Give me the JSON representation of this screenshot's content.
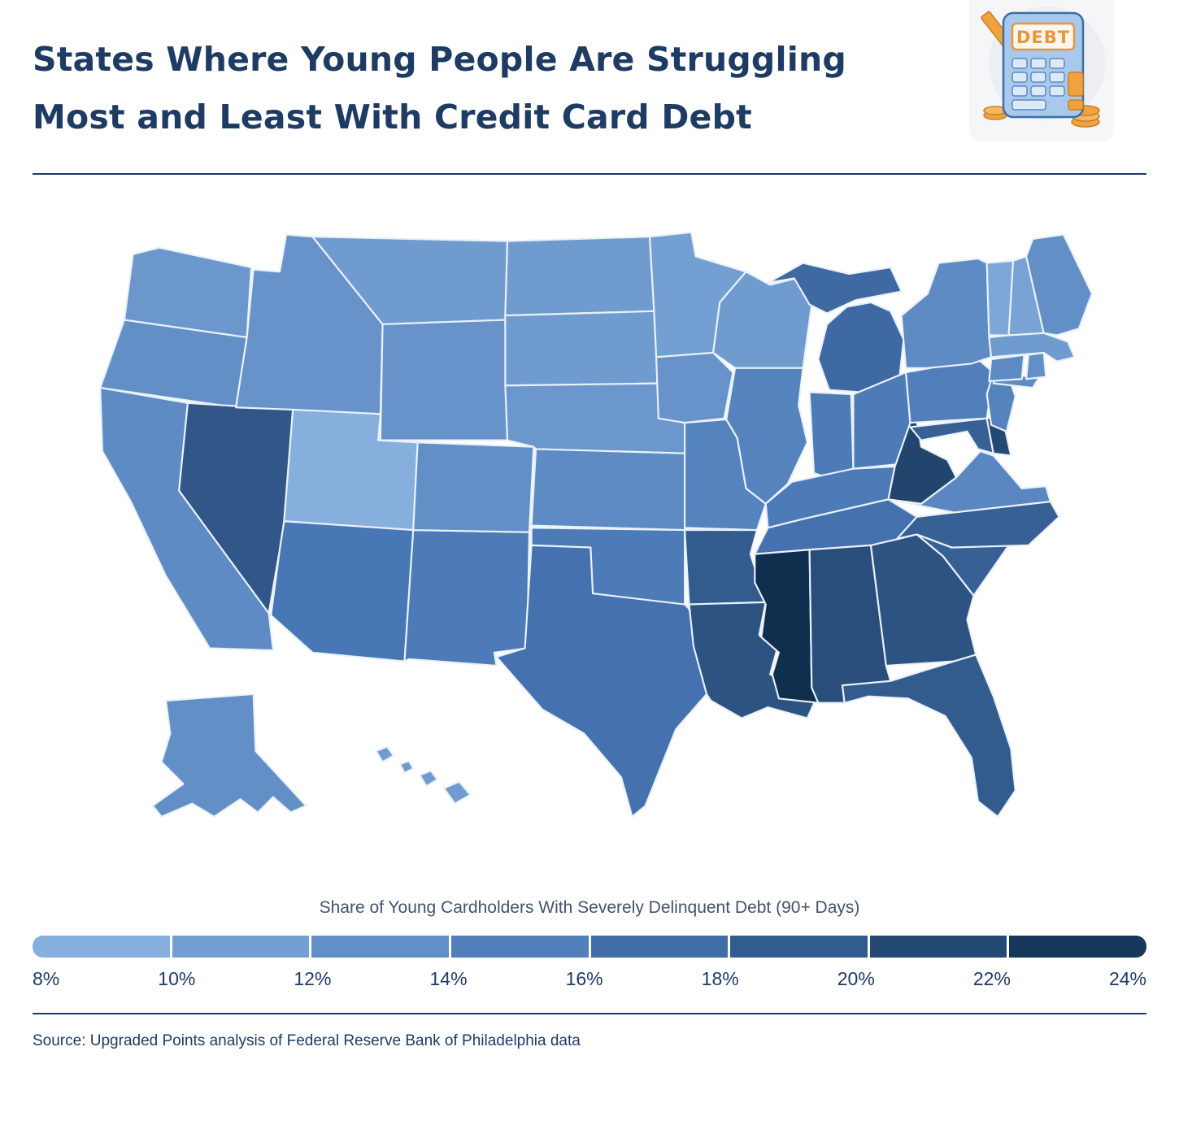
{
  "header": {
    "title": "States Where Young People Are Struggling Most and Least With Credit Card Debt",
    "title_lines": [
      "States Where Young People Are Struggling",
      "Most and Least With Credit Card Debt"
    ],
    "illustration": {
      "label": "DEBT"
    }
  },
  "legend": {
    "title": "Share of Young Cardholders With Severely Delinquent Debt (90+ Days)",
    "ticks": [
      "8%",
      "10%",
      "12%",
      "14%",
      "16%",
      "18%",
      "20%",
      "22%",
      "24%"
    ],
    "colors": [
      "#86afde",
      "#749fd2",
      "#638fc7",
      "#517fbb",
      "#416ea8",
      "#335c8e",
      "#254975",
      "#17375b"
    ],
    "scale": {
      "min": 8,
      "max": 24,
      "stops": [
        "#8fb7e4",
        "#4877b5",
        "#102e4e"
      ]
    }
  },
  "source": "Source: Upgraded Points analysis of Federal Reserve Bank of Philadelphia data",
  "chart_data": {
    "type": "choropleth_map",
    "title": "Share of Young Cardholders With Severely Delinquent Debt (90+ Days)",
    "unit": "%",
    "value_range": [
      8,
      24
    ],
    "states": [
      {
        "abbr": "WA",
        "name": "Washington",
        "value": 12
      },
      {
        "abbr": "OR",
        "name": "Oregon",
        "value": 13
      },
      {
        "abbr": "CA",
        "name": "California",
        "value": 13.5
      },
      {
        "abbr": "NV",
        "name": "Nevada",
        "value": 19.5
      },
      {
        "abbr": "ID",
        "name": "Idaho",
        "value": 12.5
      },
      {
        "abbr": "MT",
        "name": "Montana",
        "value": 11.5
      },
      {
        "abbr": "WY",
        "name": "Wyoming",
        "value": 12.5
      },
      {
        "abbr": "UT",
        "name": "Utah",
        "value": 9
      },
      {
        "abbr": "AZ",
        "name": "Arizona",
        "value": 16
      },
      {
        "abbr": "NM",
        "name": "New Mexico",
        "value": 15.5
      },
      {
        "abbr": "CO",
        "name": "Colorado",
        "value": 13
      },
      {
        "abbr": "ND",
        "name": "North Dakota",
        "value": 11.5
      },
      {
        "abbr": "SD",
        "name": "South Dakota",
        "value": 11.5
      },
      {
        "abbr": "NE",
        "name": "Nebraska",
        "value": 12
      },
      {
        "abbr": "KS",
        "name": "Kansas",
        "value": 13.5
      },
      {
        "abbr": "OK",
        "name": "Oklahoma",
        "value": 15.5
      },
      {
        "abbr": "TX",
        "name": "Texas",
        "value": 16.5
      },
      {
        "abbr": "MN",
        "name": "Minnesota",
        "value": 11
      },
      {
        "abbr": "IA",
        "name": "Iowa",
        "value": 12.5
      },
      {
        "abbr": "MO",
        "name": "Missouri",
        "value": 14.5
      },
      {
        "abbr": "AR",
        "name": "Arkansas",
        "value": 19
      },
      {
        "abbr": "LA",
        "name": "Louisiana",
        "value": 20
      },
      {
        "abbr": "WI",
        "name": "Wisconsin",
        "value": 11.5
      },
      {
        "abbr": "IL",
        "name": "Illinois",
        "value": 14.5
      },
      {
        "abbr": "MI",
        "name": "Michigan",
        "value": 17.5
      },
      {
        "abbr": "IN",
        "name": "Indiana",
        "value": 15.5
      },
      {
        "abbr": "OH",
        "name": "Ohio",
        "value": 15.5
      },
      {
        "abbr": "KY",
        "name": "Kentucky",
        "value": 15.5
      },
      {
        "abbr": "TN",
        "name": "Tennessee",
        "value": 16.5
      },
      {
        "abbr": "MS",
        "name": "Mississippi",
        "value": 24
      },
      {
        "abbr": "AL",
        "name": "Alabama",
        "value": 20.5
      },
      {
        "abbr": "GA",
        "name": "Georgia",
        "value": 20
      },
      {
        "abbr": "FL",
        "name": "Florida",
        "value": 19
      },
      {
        "abbr": "SC",
        "name": "South Carolina",
        "value": 18.5
      },
      {
        "abbr": "NC",
        "name": "North Carolina",
        "value": 18.5
      },
      {
        "abbr": "VA",
        "name": "Virginia",
        "value": 14
      },
      {
        "abbr": "WV",
        "name": "West Virginia",
        "value": 21.5
      },
      {
        "abbr": "MD",
        "name": "Maryland",
        "value": 18.5
      },
      {
        "abbr": "DE",
        "name": "Delaware",
        "value": 21
      },
      {
        "abbr": "PA",
        "name": "Pennsylvania",
        "value": 15
      },
      {
        "abbr": "NJ",
        "name": "New Jersey",
        "value": 14.5
      },
      {
        "abbr": "NY",
        "name": "New York",
        "value": 13.5
      },
      {
        "abbr": "CT",
        "name": "Connecticut",
        "value": 13.5
      },
      {
        "abbr": "RI",
        "name": "Rhode Island",
        "value": 13
      },
      {
        "abbr": "MA",
        "name": "Massachusetts",
        "value": 11.5
      },
      {
        "abbr": "VT",
        "name": "Vermont",
        "value": 10
      },
      {
        "abbr": "NH",
        "name": "New Hampshire",
        "value": 10.5
      },
      {
        "abbr": "ME",
        "name": "Maine",
        "value": 13
      },
      {
        "abbr": "AK",
        "name": "Alaska",
        "value": 13
      },
      {
        "abbr": "HI",
        "name": "Hawaii",
        "value": 11.5
      }
    ]
  }
}
